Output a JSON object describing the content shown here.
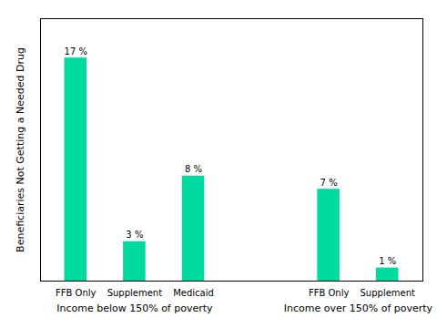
{
  "chart_data": {
    "type": "bar",
    "ylabel": "Beneficiaries Not Getting a Needed Drug",
    "groups": [
      {
        "label": "Income below 150% of poverty",
        "categories": [
          "FFB Only",
          "Supplement",
          "Medicaid"
        ],
        "values": [
          17,
          3,
          8
        ],
        "value_labels": [
          "17 %",
          "3 %",
          "8 %"
        ]
      },
      {
        "label": "Income over 150% of poverty",
        "categories": [
          "FFB Only",
          "Supplement"
        ],
        "values": [
          7,
          1
        ],
        "value_labels": [
          "7 %",
          "1 %"
        ]
      }
    ],
    "color": "#00D9A0",
    "ylim": [
      0,
      20
    ],
    "data_labels": true,
    "tick_labels": "x",
    "grid": false
  }
}
